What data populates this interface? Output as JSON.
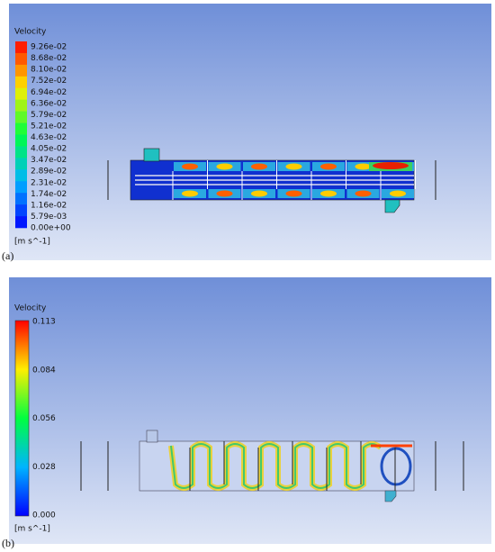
{
  "panels": [
    {
      "label": "(a)",
      "legend_title": "Velocity",
      "ticks": [
        "9.26e-02",
        "8.68e-02",
        "8.10e-02",
        "7.52e-02",
        "6.94e-02",
        "6.36e-02",
        "5.79e-02",
        "5.21e-02",
        "4.63e-02",
        "4.05e-02",
        "3.47e-02",
        "2.89e-02",
        "2.31e-02",
        "1.74e-02",
        "1.16e-02",
        "5.79e-03",
        "0.00e+00"
      ],
      "unit": "[m s^-1]"
    },
    {
      "label": "(b)",
      "legend_title": "Velocity",
      "ticks": [
        "0.113",
        "0.084",
        "0.056",
        "0.028",
        "0.000"
      ],
      "unit": "[m s^-1]"
    }
  ]
}
